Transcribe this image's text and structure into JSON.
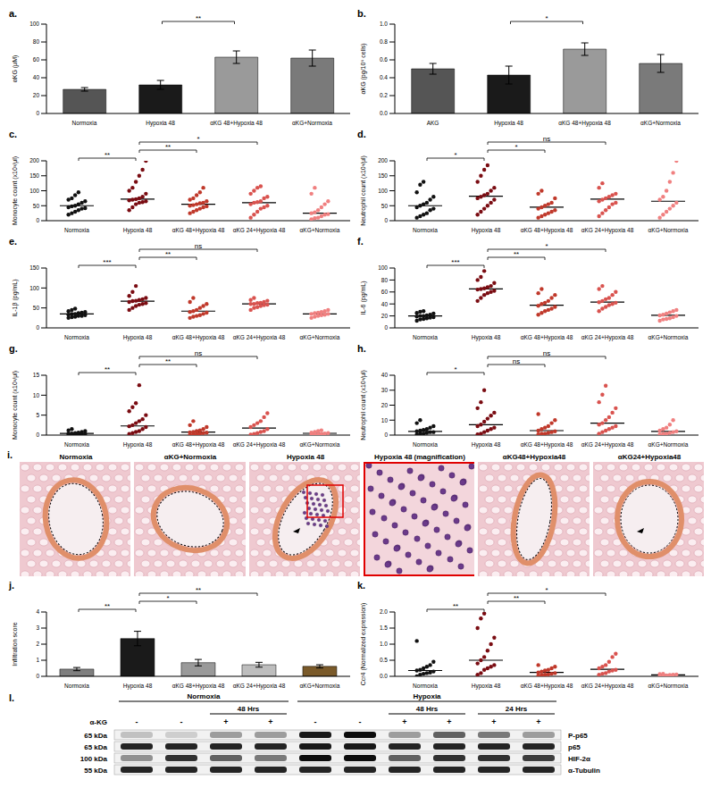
{
  "chart_data": [
    {
      "panel": "a.",
      "type": "bar",
      "categories": [
        "Normoxia",
        "Hypoxia 48",
        "αKG 48+Hypoxia 48",
        "αKG+Normoxia"
      ],
      "values": [
        27,
        32,
        63,
        62
      ],
      "errors": [
        2,
        5,
        7,
        9
      ],
      "colors": [
        "#555555",
        "#1a1a1a",
        "#9a9a9a",
        "#7a7a7a"
      ],
      "ylabel": "αKG (μM)",
      "ylim": [
        0,
        100
      ],
      "yticks": [
        0,
        20,
        40,
        60,
        80,
        100
      ],
      "annotations": [
        {
          "text": "**",
          "from": 1,
          "to": 2
        }
      ]
    },
    {
      "panel": "b.",
      "type": "bar",
      "categories": [
        "AKG",
        "Hypoxia 48",
        "αKG 48+Hypoxia 48",
        "αKG+Normoxia"
      ],
      "values": [
        0.5,
        0.43,
        0.72,
        0.56
      ],
      "errors": [
        0.06,
        0.1,
        0.07,
        0.1
      ],
      "colors": [
        "#555555",
        "#1a1a1a",
        "#9a9a9a",
        "#7a7a7a"
      ],
      "ylabel": "αKG (pg/10⁶ cells)",
      "ylim": [
        0,
        1
      ],
      "yticks": [
        {
          "value": 0,
          "label": "0.0"
        },
        0.2,
        0.4,
        0.6,
        0.8,
        {
          "value": 1,
          "label": "1.0"
        }
      ],
      "annotations": [
        {
          "text": "*",
          "from": 1,
          "to": 2
        }
      ]
    },
    {
      "panel": "c.",
      "type": "scatter",
      "marker": "circle",
      "categories": [
        "Normoxia",
        "Hypoxia 48",
        "αKG 48+Hypoxia 48",
        "αKG 24+Hypoxia 48",
        "αKG+Normoxia"
      ],
      "colors": [
        "#111111",
        "#7a0c12",
        "#c0392b",
        "#d9534f",
        "#f08080"
      ],
      "points": [
        [
          20,
          25,
          30,
          35,
          40,
          42,
          45,
          48,
          50,
          55,
          60,
          65,
          70,
          75,
          85,
          95
        ],
        [
          35,
          45,
          55,
          60,
          62,
          65,
          68,
          70,
          72,
          75,
          80,
          90,
          100,
          110,
          130,
          150,
          170,
          200
        ],
        [
          25,
          30,
          35,
          40,
          45,
          48,
          50,
          52,
          55,
          58,
          60,
          65,
          70,
          75,
          85,
          95,
          110
        ],
        [
          10,
          20,
          30,
          40,
          45,
          50,
          55,
          60,
          62,
          65,
          75,
          80,
          90,
          100,
          110,
          115
        ],
        [
          5,
          8,
          10,
          15,
          20,
          22,
          25,
          28,
          35,
          45,
          55,
          65,
          90,
          110
        ]
      ],
      "medians": [
        50,
        72,
        55,
        60,
        25
      ],
      "ylabel": "Monocyte count (x10³/μl)",
      "ylim": [
        0,
        200
      ],
      "yticks": [
        0,
        50,
        100,
        150,
        200
      ],
      "annotations": [
        {
          "text": "**",
          "from": 0,
          "to": 1
        },
        {
          "text": "**",
          "from": 1,
          "to": 2
        },
        {
          "text": "*",
          "from": 1,
          "to": 3
        }
      ]
    },
    {
      "panel": "d.",
      "type": "scatter",
      "marker": "circle",
      "categories": [
        "Normoxia",
        "Hypoxia 48",
        "αKG 48+Hypoxia 48",
        "αKG 24+Hypoxia 48",
        "αKG+Normoxia"
      ],
      "colors": [
        "#111111",
        "#7a0c12",
        "#c0392b",
        "#d9534f",
        "#f08080"
      ],
      "points": [
        [
          10,
          15,
          20,
          25,
          35,
          40,
          45,
          50,
          55,
          60,
          70,
          80,
          95,
          120,
          130
        ],
        [
          20,
          30,
          40,
          50,
          60,
          70,
          75,
          80,
          85,
          90,
          100,
          110,
          130,
          150,
          170,
          185
        ],
        [
          10,
          15,
          20,
          25,
          30,
          35,
          40,
          45,
          50,
          55,
          60,
          75,
          90,
          100
        ],
        [
          15,
          25,
          35,
          45,
          55,
          60,
          65,
          70,
          75,
          80,
          85,
          90,
          110,
          125
        ],
        [
          10,
          20,
          30,
          40,
          50,
          60,
          70,
          80,
          100,
          130,
          160,
          200
        ]
      ],
      "medians": [
        50,
        82,
        45,
        72,
        65
      ],
      "ylabel": "Neutrophil count (x10³/μl)",
      "ylim": [
        0,
        200
      ],
      "yticks": [
        0,
        50,
        100,
        150,
        200
      ],
      "annotations": [
        {
          "text": "*",
          "from": 0,
          "to": 1
        },
        {
          "text": "*",
          "from": 1,
          "to": 2
        },
        {
          "text": "ns",
          "from": 1,
          "to": 3
        }
      ]
    },
    {
      "panel": "e.",
      "type": "scatter",
      "marker": "circle",
      "categories": [
        "Normoxia",
        "Hypoxia 48",
        "αKG 48+Hypoxia 48",
        "αKG 24+Hypoxia 48",
        "αKG+Normoxia"
      ],
      "colors": [
        "#111111",
        "#7a0c12",
        "#c0392b",
        "#d9534f",
        "#f08080"
      ],
      "points": [
        [
          25,
          27,
          28,
          30,
          30,
          32,
          33,
          35,
          35,
          37,
          38,
          40,
          42,
          45,
          48
        ],
        [
          45,
          50,
          55,
          58,
          60,
          62,
          65,
          67,
          68,
          70,
          72,
          75,
          80,
          90,
          105
        ],
        [
          25,
          28,
          30,
          32,
          35,
          38,
          40,
          42,
          45,
          50,
          55,
          60,
          65,
          75
        ],
        [
          45,
          50,
          52,
          55,
          57,
          58,
          60,
          60,
          62,
          63,
          65,
          68,
          70,
          75
        ],
        [
          25,
          28,
          30,
          32,
          33,
          35,
          35,
          37,
          38,
          40,
          42,
          45
        ]
      ],
      "medians": [
        35,
        67,
        42,
        60,
        35
      ],
      "ylabel": "IL-1β (pg/mL)",
      "ylim": [
        0,
        150
      ],
      "yticks": [
        0,
        50,
        100,
        150
      ],
      "annotations": [
        {
          "text": "***",
          "from": 0,
          "to": 1
        },
        {
          "text": "**",
          "from": 1,
          "to": 2
        },
        {
          "text": "ns",
          "from": 1,
          "to": 3
        }
      ]
    },
    {
      "panel": "f.",
      "type": "scatter",
      "marker": "circle",
      "categories": [
        "Normoxia",
        "Hypoxia 48",
        "αKG 48+Hypoxia 48",
        "αKG 24+Hypoxia 48",
        "αKG+Normoxia"
      ],
      "colors": [
        "#111111",
        "#7a0c12",
        "#c0392b",
        "#d9534f",
        "#f08080"
      ],
      "points": [
        [
          12,
          14,
          15,
          16,
          17,
          18,
          19,
          20,
          20,
          21,
          22,
          24,
          25,
          27,
          28
        ],
        [
          45,
          50,
          55,
          58,
          60,
          62,
          64,
          65,
          66,
          68,
          70,
          75,
          80,
          85,
          95
        ],
        [
          22,
          25,
          28,
          30,
          32,
          35,
          37,
          40,
          42,
          45,
          50,
          55,
          58,
          65
        ],
        [
          28,
          32,
          35,
          38,
          40,
          42,
          43,
          45,
          48,
          50,
          55,
          60,
          65,
          70
        ],
        [
          12,
          14,
          15,
          16,
          18,
          20,
          21,
          22,
          24,
          26,
          28,
          30
        ]
      ],
      "medians": [
        20,
        65,
        38,
        43,
        21
      ],
      "ylabel": "IL-6 (pg/mL)",
      "ylim": [
        0,
        100
      ],
      "yticks": [
        0,
        20,
        40,
        60,
        80,
        100
      ],
      "annotations": [
        {
          "text": "***",
          "from": 0,
          "to": 1
        },
        {
          "text": "**",
          "from": 1,
          "to": 2
        },
        {
          "text": "*",
          "from": 1,
          "to": 3
        }
      ]
    },
    {
      "panel": "g.",
      "type": "scatter",
      "marker": "circle",
      "categories": [
        "Normoxia",
        "Hypoxia 48",
        "αKG 48+Hypoxia 48",
        "αKG 24+Hypoxia 48",
        "αKG+Normoxia"
      ],
      "colors": [
        "#111111",
        "#7a0c12",
        "#c0392b",
        "#d9534f",
        "#f08080"
      ],
      "points": [
        [
          0,
          0.1,
          0.2,
          0.2,
          0.3,
          0.3,
          0.4,
          0.4,
          0.5,
          0.6,
          0.8,
          1.0,
          1.2,
          1.5
        ],
        [
          0.3,
          0.5,
          0.8,
          1.0,
          1.5,
          2.0,
          2.2,
          2.5,
          3,
          3.5,
          4,
          5,
          6,
          7,
          8,
          12.5
        ],
        [
          0.1,
          0.2,
          0.3,
          0.4,
          0.5,
          0.6,
          0.7,
          0.8,
          1.0,
          1.2,
          1.5,
          2.0,
          2.5,
          3.5
        ],
        [
          0.1,
          0.3,
          0.5,
          0.8,
          1.0,
          1.5,
          2.0,
          2.5,
          3,
          3.5,
          4.5,
          5.5
        ],
        [
          0.1,
          0.2,
          0.2,
          0.3,
          0.4,
          0.5,
          0.6,
          0.8,
          1.0,
          1.2
        ]
      ],
      "medians": [
        0.4,
        2.3,
        0.75,
        1.75,
        0.45
      ],
      "ylabel": "Monocyte count (x10³/μl)",
      "ylim": [
        0,
        15
      ],
      "yticks": [
        0,
        5,
        10,
        15
      ],
      "annotations": [
        {
          "text": "**",
          "from": 0,
          "to": 1
        },
        {
          "text": "**",
          "from": 1,
          "to": 2
        },
        {
          "text": "ns",
          "from": 1,
          "to": 3
        }
      ]
    },
    {
      "panel": "h.",
      "type": "scatter",
      "marker": "circle",
      "categories": [
        "Normoxia",
        "Hypoxia 48",
        "αKG 48+Hypoxia 48",
        "αKG 24+Hypoxia 48",
        "αKG+Normoxia"
      ],
      "colors": [
        "#111111",
        "#7a0c12",
        "#c0392b",
        "#d9534f",
        "#f08080"
      ],
      "points": [
        [
          0.5,
          1,
          1,
          1.5,
          2,
          2,
          2.5,
          3,
          3.5,
          4,
          5,
          6,
          8,
          10
        ],
        [
          0.5,
          1,
          2,
          3,
          4,
          5,
          6,
          7,
          9,
          11,
          13,
          15,
          18,
          22,
          30
        ],
        [
          0.5,
          1,
          1,
          1.5,
          2,
          2.5,
          3,
          4,
          5,
          6,
          8,
          10,
          14
        ],
        [
          1,
          2,
          3,
          4,
          5,
          6,
          7,
          8,
          10,
          12,
          15,
          18,
          22,
          27,
          33
        ],
        [
          0.5,
          1,
          1,
          1.5,
          2,
          2.5,
          3,
          4,
          5,
          7,
          10
        ]
      ],
      "medians": [
        2.5,
        7,
        3,
        8,
        2.5
      ],
      "ylabel": "Neutrophil count (x10³/μl)",
      "ylim": [
        0,
        40
      ],
      "yticks": [
        0,
        10,
        20,
        30,
        40
      ],
      "annotations": [
        {
          "text": "*",
          "from": 0,
          "to": 1
        },
        {
          "text": "ns",
          "from": 1,
          "to": 2
        },
        {
          "text": "ns",
          "from": 1,
          "to": 3
        }
      ]
    },
    {
      "panel": "j.",
      "type": "bar",
      "categories": [
        "Normoxia",
        "Hypoxia 48",
        "αKG 48+Hypoxia 48",
        "αKG 24+Hypoxia 48",
        "αKG+Normoxia"
      ],
      "values": [
        0.45,
        2.35,
        0.85,
        0.72,
        0.62
      ],
      "errors": [
        0.1,
        0.45,
        0.2,
        0.15,
        0.1
      ],
      "colors": [
        "#7f7f7f",
        "#1a1a1a",
        "#9a9a9a",
        "#bdbdbd",
        "#7a5a2a"
      ],
      "ylabel": "Infiltration score",
      "ylim": [
        0,
        4
      ],
      "yticks": [
        0,
        1,
        2,
        3,
        4
      ],
      "annotations": [
        {
          "text": "**",
          "from": 0,
          "to": 1
        },
        {
          "text": "*",
          "from": 1,
          "to": 2
        },
        {
          "text": "**",
          "from": 1,
          "to": 3
        }
      ]
    },
    {
      "panel": "k.",
      "type": "scatter",
      "marker": "circle",
      "categories": [
        "Normoxia",
        "Hypoxia 48",
        "αKG 48+Hypoxia 48",
        "αKG 24+Hypoxia 48",
        "αKG+Normoxia"
      ],
      "colors": [
        "#111111",
        "#7a0c12",
        "#c0392b",
        "#d9534f",
        "#f08080"
      ],
      "points": [
        [
          0,
          0.05,
          0.08,
          0.1,
          0.12,
          0.15,
          0.18,
          0.2,
          0.25,
          0.3,
          0.35,
          0.45,
          1.1
        ],
        [
          0.05,
          0.1,
          0.2,
          0.25,
          0.3,
          0.35,
          0.4,
          0.5,
          0.6,
          0.8,
          1.0,
          1.2,
          1.5,
          1.8,
          1.95
        ],
        [
          0.02,
          0.04,
          0.05,
          0.06,
          0.08,
          0.1,
          0.12,
          0.15,
          0.18,
          0.2,
          0.25,
          0.3,
          0.35
        ],
        [
          0.05,
          0.08,
          0.1,
          0.15,
          0.18,
          0.2,
          0.25,
          0.3,
          0.35,
          0.45,
          0.6,
          0.7
        ],
        [
          0.01,
          0.02,
          0.03,
          0.04,
          0.05,
          0.06,
          0.07,
          0.08
        ]
      ],
      "medians": [
        0.18,
        0.5,
        0.12,
        0.22,
        0.045
      ],
      "ylabel": "Ccr4 (Normalized expression)",
      "ylim": [
        0,
        2
      ],
      "yticks": [
        {
          "value": 0,
          "label": "0.0"
        },
        0.5,
        {
          "value": 1,
          "label": "1.0"
        },
        1.5,
        {
          "value": 2,
          "label": "2.0"
        }
      ],
      "annotations": [
        {
          "text": "**",
          "from": 0,
          "to": 1
        },
        {
          "text": "**",
          "from": 1,
          "to": 2
        },
        {
          "text": "*",
          "from": 1,
          "to": 3
        }
      ]
    }
  ],
  "histology": {
    "panel": "i.",
    "titles": [
      "Normoxia",
      "αKG+Normoxia",
      "Hypoxia 48",
      "Hypoxia 48 (magnification)",
      "αKG48+Hypoxia48",
      "αKG24+Hypoxia48"
    ]
  },
  "western_blot": {
    "panel": "l.",
    "groups": [
      {
        "label": "Normoxia",
        "lanes": [
          0,
          3
        ]
      },
      {
        "label": "Hypoxia",
        "lanes": [
          4,
          9
        ]
      }
    ],
    "timepoints": [
      {
        "label": "48 Hrs",
        "lanes": [
          2,
          3
        ]
      },
      {
        "label": "48 Hrs",
        "lanes": [
          6,
          7
        ]
      },
      {
        "label": "24 Hrs",
        "lanes": [
          8,
          9
        ]
      }
    ],
    "treatment": {
      "label": "α-KG",
      "lanes": [
        "-",
        "-",
        "+",
        "+",
        "-",
        "-",
        "+",
        "+",
        "+",
        "+"
      ]
    },
    "rows": [
      {
        "mw": "65 kDa",
        "protein": "P-p65",
        "intensity": [
          0.2,
          0.15,
          0.35,
          0.35,
          0.9,
          0.95,
          0.35,
          0.6,
          0.5,
          0.35
        ]
      },
      {
        "mw": "65 kDa",
        "protein": "p65",
        "intensity": [
          0.85,
          0.85,
          0.85,
          0.85,
          0.9,
          0.9,
          0.85,
          0.85,
          0.85,
          0.85
        ]
      },
      {
        "mw": "100 kDa",
        "protein": "HIF-2α",
        "intensity": [
          0.4,
          0.8,
          0.6,
          0.5,
          0.95,
          0.95,
          0.6,
          0.8,
          0.8,
          0.75
        ]
      },
      {
        "mw": "55 kDa",
        "protein": "α-Tubulin",
        "intensity": [
          0.85,
          0.85,
          0.85,
          0.85,
          0.85,
          0.85,
          0.85,
          0.85,
          0.85,
          0.85
        ]
      }
    ]
  }
}
